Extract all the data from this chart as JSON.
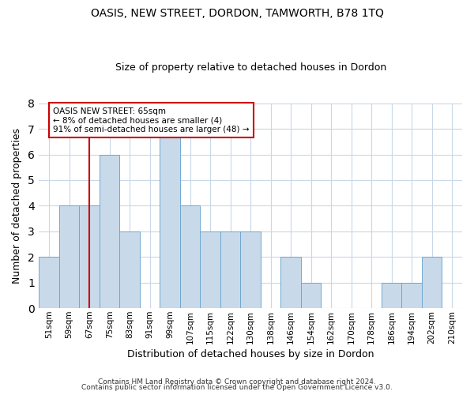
{
  "title": "OASIS, NEW STREET, DORDON, TAMWORTH, B78 1TQ",
  "subtitle": "Size of property relative to detached houses in Dordon",
  "xlabel": "Distribution of detached houses by size in Dordon",
  "ylabel": "Number of detached properties",
  "bar_color": "#c8daea",
  "bar_edge_color": "#6fa8d0",
  "categories": [
    "51sqm",
    "59sqm",
    "67sqm",
    "75sqm",
    "83sqm",
    "91sqm",
    "99sqm",
    "107sqm",
    "115sqm",
    "122sqm",
    "130sqm",
    "138sqm",
    "146sqm",
    "154sqm",
    "162sqm",
    "170sqm",
    "178sqm",
    "186sqm",
    "194sqm",
    "202sqm",
    "210sqm"
  ],
  "values": [
    2,
    4,
    4,
    6,
    3,
    0,
    7,
    4,
    3,
    3,
    3,
    0,
    2,
    1,
    0,
    0,
    0,
    1,
    1,
    2,
    0
  ],
  "ylim": [
    0,
    8
  ],
  "yticks": [
    0,
    1,
    2,
    3,
    4,
    5,
    6,
    7,
    8
  ],
  "annotation_box_text": "OASIS NEW STREET: 65sqm\n← 8% of detached houses are smaller (4)\n91% of semi-detached houses are larger (48) →",
  "vline_x_index": 2,
  "vline_color": "#cc0000",
  "footer_line1": "Contains HM Land Registry data © Crown copyright and database right 2024.",
  "footer_line2": "Contains public sector information licensed under the Open Government Licence v3.0.",
  "grid_color": "#c8d8e8",
  "background_color": "#ffffff",
  "plot_bg_color": "#ffffff"
}
